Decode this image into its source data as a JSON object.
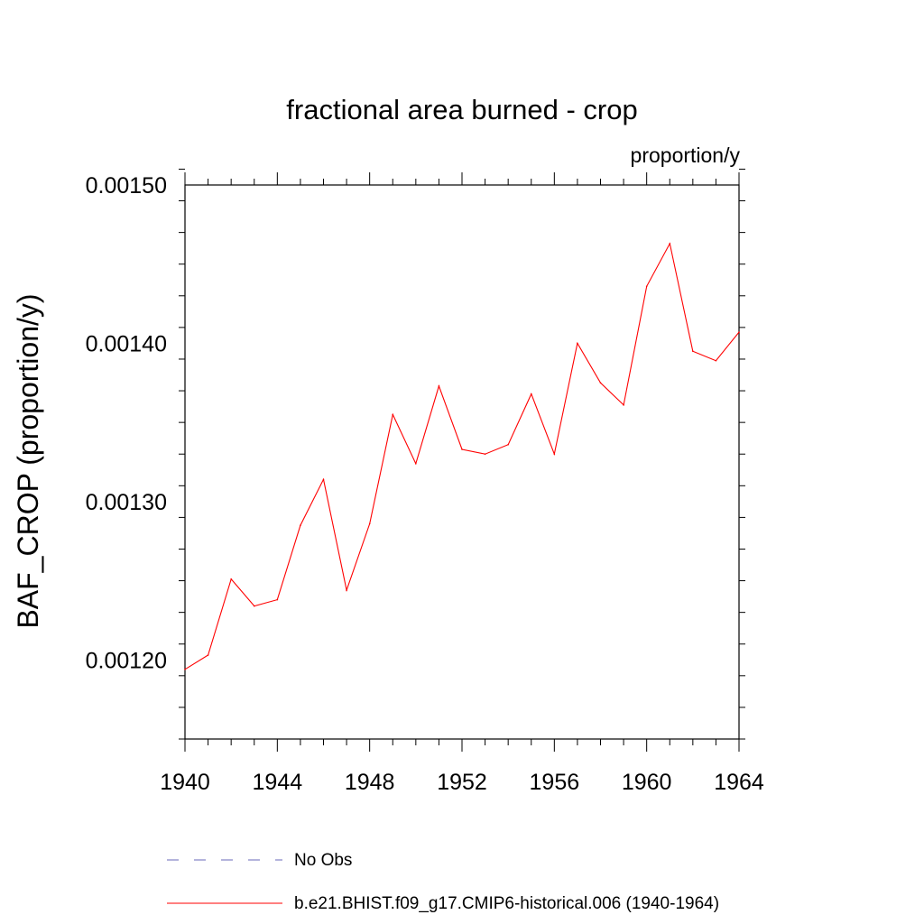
{
  "chart_data": {
    "type": "line",
    "title": "fractional area burned - crop",
    "units_label": "proportion/y",
    "ylabel": "BAF_CROP  (proportion/y)",
    "xlabel": "",
    "xlim": [
      1940,
      1964
    ],
    "ylim": [
      0.00115,
      0.0015
    ],
    "x_ticks": [
      1940,
      1944,
      1948,
      1952,
      1956,
      1960,
      1964
    ],
    "x_tick_labels": [
      "1940",
      "1944",
      "1948",
      "1952",
      "1956",
      "1960",
      "1964"
    ],
    "y_ticks": [
      0.0012,
      0.0013,
      0.0014,
      0.0015
    ],
    "y_tick_labels": [
      "0.00120",
      "0.00130",
      "0.00140",
      "0.00150"
    ],
    "grid": false,
    "legend_position": "bottom",
    "series": [
      {
        "name": "b.e21.BHIST.f09_g17.CMIP6-historical.006 (1940-1964)",
        "color": "#ff0000",
        "style": "solid",
        "x": [
          1940,
          1941,
          1942,
          1943,
          1944,
          1945,
          1946,
          1947,
          1948,
          1949,
          1950,
          1951,
          1952,
          1953,
          1954,
          1955,
          1956,
          1957,
          1958,
          1959,
          1960,
          1961,
          1962,
          1963,
          1964
        ],
        "values": [
          0.001194,
          0.001203,
          0.001251,
          0.001234,
          0.001238,
          0.001285,
          0.001314,
          0.001244,
          0.001286,
          0.001355,
          0.001324,
          0.001373,
          0.001333,
          0.00133,
          0.001336,
          0.001368,
          0.00133,
          0.0014,
          0.001375,
          0.001361,
          0.001436,
          0.001463,
          0.001395,
          0.001389,
          0.001407
        ]
      }
    ],
    "legend": [
      {
        "label": "No Obs",
        "color": "#6a6ab8",
        "style": "dashed"
      },
      {
        "label": "b.e21.BHIST.f09_g17.CMIP6-historical.006 (1940-1964)",
        "color": "#ff0000",
        "style": "solid"
      }
    ]
  }
}
